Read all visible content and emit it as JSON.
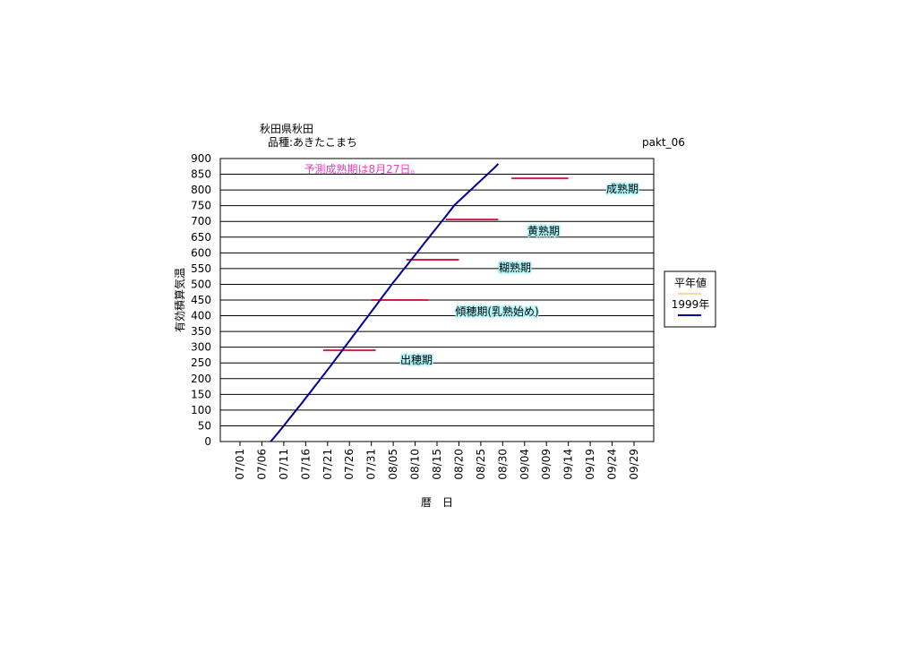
{
  "chart_data": {
    "type": "line",
    "title": "秋田県秋田",
    "subtitle": "品種:あきたこまち",
    "code": "pakt_06",
    "x_label": "暦　日",
    "y_label": "有効積算気温",
    "annotation": "予測成熟期は8月27日。",
    "annotation_color": "#e040c0",
    "xlim": [
      177.5,
      276.5
    ],
    "xticks": [
      {
        "value": 182,
        "label": "07/01"
      },
      {
        "value": 187,
        "label": "07/06"
      },
      {
        "value": 192,
        "label": "07/11"
      },
      {
        "value": 197,
        "label": "07/16"
      },
      {
        "value": 202,
        "label": "07/21"
      },
      {
        "value": 207,
        "label": "07/26"
      },
      {
        "value": 212,
        "label": "07/31"
      },
      {
        "value": 217,
        "label": "08/05"
      },
      {
        "value": 222,
        "label": "08/10"
      },
      {
        "value": 227,
        "label": "08/15"
      },
      {
        "value": 232,
        "label": "08/20"
      },
      {
        "value": 237,
        "label": "08/25"
      },
      {
        "value": 242,
        "label": "08/30"
      },
      {
        "value": 247,
        "label": "09/04"
      },
      {
        "value": 252,
        "label": "09/09"
      },
      {
        "value": 257,
        "label": "09/14"
      },
      {
        "value": 262,
        "label": "09/19"
      },
      {
        "value": 267,
        "label": "09/24"
      },
      {
        "value": 272,
        "label": "09/29"
      }
    ],
    "ylim": [
      0,
      900
    ],
    "yticks": [
      0,
      50,
      100,
      150,
      200,
      250,
      300,
      350,
      400,
      450,
      500,
      550,
      600,
      650,
      700,
      750,
      800,
      850,
      900
    ],
    "grid": true,
    "series": [
      {
        "name": "平年値",
        "color": "#f0b040",
        "x": [],
        "values": []
      },
      {
        "name": "1999年",
        "color": "#000099",
        "x": [
          189,
          190,
          191,
          192,
          193,
          194,
          195,
          196,
          197,
          198,
          199,
          200,
          201,
          202,
          203,
          204,
          205,
          206,
          207,
          208,
          209,
          210,
          211,
          212,
          213,
          214,
          215,
          216,
          217,
          218,
          219,
          220,
          221,
          222,
          223,
          224,
          225,
          226,
          227,
          228,
          229,
          230,
          231,
          232,
          233,
          234,
          235,
          236,
          237,
          238,
          239,
          240,
          241
        ],
        "values": [
          0,
          16,
          33,
          50,
          68,
          85,
          103,
          120,
          138,
          156,
          174,
          192,
          210,
          228,
          246,
          265,
          283,
          302,
          320,
          339,
          357,
          376,
          394,
          413,
          431,
          450,
          469,
          487,
          506,
          523,
          541,
          558,
          576,
          593,
          611,
          629,
          646,
          664,
          681,
          699,
          716,
          734,
          752,
          765,
          778,
          791,
          804,
          817,
          830,
          843,
          856,
          869,
          883
        ]
      }
    ],
    "stage_color": "#d0204a",
    "stages": [
      {
        "label": "出穂期",
        "value": 290,
        "start": 201,
        "end": 213
      },
      {
        "label": "傾穂期(乳熟始め)",
        "value": 450,
        "start": 212,
        "end": 225
      },
      {
        "label": "糊熟期",
        "value": 578,
        "start": 220,
        "end": 232
      },
      {
        "label": "黄熟期",
        "value": 706,
        "start": 229,
        "end": 241
      },
      {
        "label": "成熟期",
        "value": 837,
        "start": 244,
        "end": 257
      }
    ]
  }
}
